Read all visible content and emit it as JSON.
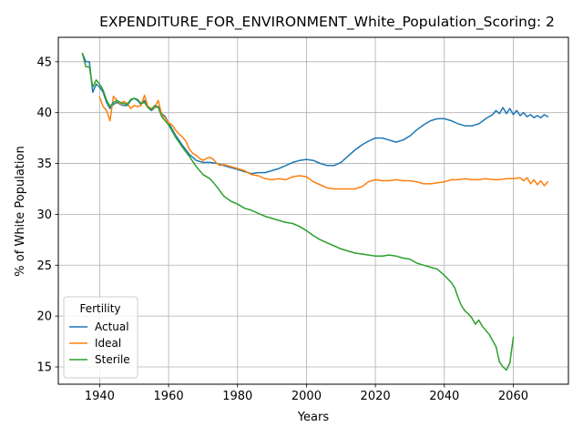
{
  "chart_data": {
    "type": "line",
    "title": "EXPENDITURE_FOR_ENVIRONMENT_White_Population_Scoring: 2",
    "xlabel": "Years",
    "ylabel": "% of White Population",
    "xlim": [
      1928,
      2076
    ],
    "ylim": [
      13.3,
      47.4
    ],
    "xticks": [
      1940,
      1960,
      1980,
      2000,
      2020,
      2040,
      2060
    ],
    "yticks": [
      15,
      20,
      25,
      30,
      35,
      40,
      45
    ],
    "grid": true,
    "legend": {
      "title": "Fertility",
      "placement": "lower-left"
    },
    "series": [
      {
        "name": "Actual",
        "color": "#1f77b4",
        "points": [
          [
            1935,
            45.8
          ],
          [
            1936,
            45.0
          ],
          [
            1937,
            45.0
          ],
          [
            1938,
            42.0
          ],
          [
            1939,
            42.8
          ],
          [
            1940,
            42.5
          ],
          [
            1941,
            42.0
          ],
          [
            1942,
            41.0
          ],
          [
            1943,
            40.4
          ],
          [
            1944,
            40.8
          ],
          [
            1945,
            41.0
          ],
          [
            1946,
            40.8
          ],
          [
            1947,
            40.7
          ],
          [
            1948,
            40.7
          ],
          [
            1949,
            41.2
          ],
          [
            1950,
            41.4
          ],
          [
            1951,
            41.2
          ],
          [
            1952,
            40.8
          ],
          [
            1953,
            41.2
          ],
          [
            1954,
            40.5
          ],
          [
            1955,
            40.2
          ],
          [
            1956,
            40.5
          ],
          [
            1957,
            40.6
          ],
          [
            1958,
            39.9
          ],
          [
            1959,
            39.6
          ],
          [
            1960,
            39.0
          ],
          [
            1962,
            37.8
          ],
          [
            1964,
            36.8
          ],
          [
            1966,
            35.9
          ],
          [
            1968,
            35.3
          ],
          [
            1970,
            35.1
          ],
          [
            1972,
            35.1
          ],
          [
            1974,
            35.0
          ],
          [
            1976,
            34.8
          ],
          [
            1978,
            34.6
          ],
          [
            1980,
            34.4
          ],
          [
            1982,
            34.2
          ],
          [
            1984,
            34.0
          ],
          [
            1986,
            34.1
          ],
          [
            1988,
            34.1
          ],
          [
            1990,
            34.3
          ],
          [
            1992,
            34.5
          ],
          [
            1994,
            34.8
          ],
          [
            1996,
            35.1
          ],
          [
            1998,
            35.3
          ],
          [
            2000,
            35.4
          ],
          [
            2002,
            35.3
          ],
          [
            2004,
            35.0
          ],
          [
            2006,
            34.8
          ],
          [
            2008,
            34.8
          ],
          [
            2010,
            35.1
          ],
          [
            2012,
            35.7
          ],
          [
            2014,
            36.3
          ],
          [
            2016,
            36.8
          ],
          [
            2018,
            37.2
          ],
          [
            2020,
            37.5
          ],
          [
            2022,
            37.5
          ],
          [
            2024,
            37.3
          ],
          [
            2026,
            37.1
          ],
          [
            2028,
            37.3
          ],
          [
            2030,
            37.7
          ],
          [
            2032,
            38.3
          ],
          [
            2034,
            38.8
          ],
          [
            2036,
            39.2
          ],
          [
            2038,
            39.4
          ],
          [
            2040,
            39.4
          ],
          [
            2042,
            39.2
          ],
          [
            2044,
            38.9
          ],
          [
            2046,
            38.7
          ],
          [
            2048,
            38.7
          ],
          [
            2050,
            38.9
          ],
          [
            2052,
            39.4
          ],
          [
            2054,
            39.8
          ],
          [
            2055,
            40.2
          ],
          [
            2056,
            39.9
          ],
          [
            2057,
            40.5
          ],
          [
            2058,
            39.9
          ],
          [
            2059,
            40.4
          ],
          [
            2060,
            39.8
          ],
          [
            2061,
            40.2
          ],
          [
            2062,
            39.7
          ],
          [
            2063,
            40.0
          ],
          [
            2064,
            39.6
          ],
          [
            2065,
            39.8
          ],
          [
            2066,
            39.5
          ],
          [
            2067,
            39.7
          ],
          [
            2068,
            39.5
          ],
          [
            2069,
            39.8
          ],
          [
            2070,
            39.6
          ]
        ]
      },
      {
        "name": "Ideal",
        "color": "#ff7f0e",
        "points": [
          [
            1940,
            41.5
          ],
          [
            1941,
            40.6
          ],
          [
            1942,
            40.2
          ],
          [
            1943,
            39.2
          ],
          [
            1944,
            41.6
          ],
          [
            1945,
            41.2
          ],
          [
            1946,
            40.8
          ],
          [
            1947,
            41.1
          ],
          [
            1948,
            40.9
          ],
          [
            1949,
            40.4
          ],
          [
            1950,
            40.7
          ],
          [
            1951,
            40.6
          ],
          [
            1952,
            40.7
          ],
          [
            1953,
            41.7
          ],
          [
            1954,
            40.6
          ],
          [
            1955,
            40.4
          ],
          [
            1956,
            40.5
          ],
          [
            1957,
            41.2
          ],
          [
            1958,
            39.8
          ],
          [
            1959,
            39.5
          ],
          [
            1960,
            39.0
          ],
          [
            1961,
            38.8
          ],
          [
            1962,
            38.3
          ],
          [
            1963,
            37.9
          ],
          [
            1964,
            37.6
          ],
          [
            1965,
            37.2
          ],
          [
            1966,
            36.4
          ],
          [
            1967,
            36.0
          ],
          [
            1968,
            35.8
          ],
          [
            1969,
            35.5
          ],
          [
            1970,
            35.3
          ],
          [
            1971,
            35.5
          ],
          [
            1972,
            35.6
          ],
          [
            1973,
            35.4
          ],
          [
            1974,
            35.0
          ],
          [
            1975,
            34.8
          ],
          [
            1976,
            34.9
          ],
          [
            1978,
            34.7
          ],
          [
            1980,
            34.5
          ],
          [
            1982,
            34.3
          ],
          [
            1984,
            33.9
          ],
          [
            1986,
            33.8
          ],
          [
            1988,
            33.5
          ],
          [
            1990,
            33.4
          ],
          [
            1992,
            33.5
          ],
          [
            1994,
            33.4
          ],
          [
            1996,
            33.7
          ],
          [
            1998,
            33.8
          ],
          [
            2000,
            33.7
          ],
          [
            2002,
            33.2
          ],
          [
            2004,
            32.9
          ],
          [
            2006,
            32.6
          ],
          [
            2008,
            32.5
          ],
          [
            2010,
            32.5
          ],
          [
            2012,
            32.5
          ],
          [
            2014,
            32.5
          ],
          [
            2016,
            32.7
          ],
          [
            2018,
            33.2
          ],
          [
            2020,
            33.4
          ],
          [
            2022,
            33.3
          ],
          [
            2024,
            33.3
          ],
          [
            2026,
            33.4
          ],
          [
            2028,
            33.3
          ],
          [
            2030,
            33.3
          ],
          [
            2032,
            33.2
          ],
          [
            2034,
            33.0
          ],
          [
            2036,
            33.0
          ],
          [
            2038,
            33.1
          ],
          [
            2040,
            33.2
          ],
          [
            2042,
            33.4
          ],
          [
            2044,
            33.4
          ],
          [
            2046,
            33.5
          ],
          [
            2048,
            33.4
          ],
          [
            2050,
            33.4
          ],
          [
            2052,
            33.5
          ],
          [
            2054,
            33.4
          ],
          [
            2056,
            33.4
          ],
          [
            2058,
            33.5
          ],
          [
            2060,
            33.5
          ],
          [
            2062,
            33.6
          ],
          [
            2063,
            33.3
          ],
          [
            2064,
            33.6
          ],
          [
            2065,
            33.0
          ],
          [
            2066,
            33.4
          ],
          [
            2067,
            32.9
          ],
          [
            2068,
            33.3
          ],
          [
            2069,
            32.8
          ],
          [
            2070,
            33.2
          ]
        ]
      },
      {
        "name": "Sterile",
        "color": "#2ca02c",
        "points": [
          [
            1935,
            45.8
          ],
          [
            1936,
            44.5
          ],
          [
            1937,
            44.5
          ],
          [
            1938,
            42.5
          ],
          [
            1939,
            43.2
          ],
          [
            1940,
            42.8
          ],
          [
            1941,
            42.2
          ],
          [
            1942,
            41.2
          ],
          [
            1943,
            40.6
          ],
          [
            1944,
            41.0
          ],
          [
            1945,
            41.2
          ],
          [
            1946,
            41.0
          ],
          [
            1947,
            40.9
          ],
          [
            1948,
            40.8
          ],
          [
            1949,
            41.3
          ],
          [
            1950,
            41.4
          ],
          [
            1951,
            41.3
          ],
          [
            1952,
            40.9
          ],
          [
            1953,
            41.0
          ],
          [
            1954,
            40.5
          ],
          [
            1955,
            40.3
          ],
          [
            1956,
            40.7
          ],
          [
            1957,
            40.5
          ],
          [
            1958,
            39.6
          ],
          [
            1959,
            39.2
          ],
          [
            1960,
            38.8
          ],
          [
            1962,
            37.6
          ],
          [
            1964,
            36.6
          ],
          [
            1966,
            35.7
          ],
          [
            1968,
            34.7
          ],
          [
            1970,
            33.9
          ],
          [
            1972,
            33.5
          ],
          [
            1974,
            32.7
          ],
          [
            1976,
            31.8
          ],
          [
            1978,
            31.3
          ],
          [
            1980,
            31.0
          ],
          [
            1982,
            30.6
          ],
          [
            1984,
            30.4
          ],
          [
            1986,
            30.1
          ],
          [
            1988,
            29.8
          ],
          [
            1990,
            29.6
          ],
          [
            1992,
            29.4
          ],
          [
            1994,
            29.2
          ],
          [
            1996,
            29.1
          ],
          [
            1998,
            28.8
          ],
          [
            2000,
            28.4
          ],
          [
            2002,
            27.9
          ],
          [
            2004,
            27.5
          ],
          [
            2006,
            27.2
          ],
          [
            2008,
            26.9
          ],
          [
            2010,
            26.6
          ],
          [
            2012,
            26.4
          ],
          [
            2014,
            26.2
          ],
          [
            2016,
            26.1
          ],
          [
            2018,
            26.0
          ],
          [
            2020,
            25.9
          ],
          [
            2022,
            25.9
          ],
          [
            2024,
            26.0
          ],
          [
            2026,
            25.9
          ],
          [
            2028,
            25.7
          ],
          [
            2030,
            25.6
          ],
          [
            2032,
            25.2
          ],
          [
            2034,
            25.0
          ],
          [
            2036,
            24.8
          ],
          [
            2038,
            24.6
          ],
          [
            2040,
            24.0
          ],
          [
            2042,
            23.3
          ],
          [
            2043,
            22.8
          ],
          [
            2044,
            21.8
          ],
          [
            2045,
            21.0
          ],
          [
            2046,
            20.5
          ],
          [
            2047,
            20.2
          ],
          [
            2048,
            19.8
          ],
          [
            2049,
            19.2
          ],
          [
            2050,
            19.6
          ],
          [
            2051,
            19.0
          ],
          [
            2052,
            18.6
          ],
          [
            2053,
            18.2
          ],
          [
            2054,
            17.6
          ],
          [
            2055,
            17.0
          ],
          [
            2056,
            15.5
          ],
          [
            2057,
            15.0
          ],
          [
            2058,
            14.7
          ],
          [
            2059,
            15.4
          ],
          [
            2060,
            17.9
          ]
        ]
      }
    ]
  }
}
